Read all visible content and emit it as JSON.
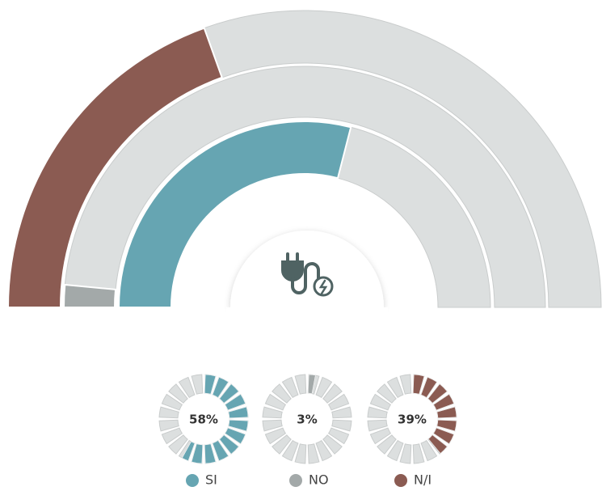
{
  "chart_data": {
    "type": "radial_bar",
    "categories": [
      "SI",
      "NO",
      "N/I"
    ],
    "values": [
      58,
      3,
      39
    ],
    "value_labels": [
      "58%",
      "3%",
      "39%"
    ],
    "colors": [
      "#66a5b2",
      "#a3a9a9",
      "#8b5b52"
    ],
    "track_color": "#dcdfdf",
    "ylim": [
      0,
      100
    ]
  }
}
